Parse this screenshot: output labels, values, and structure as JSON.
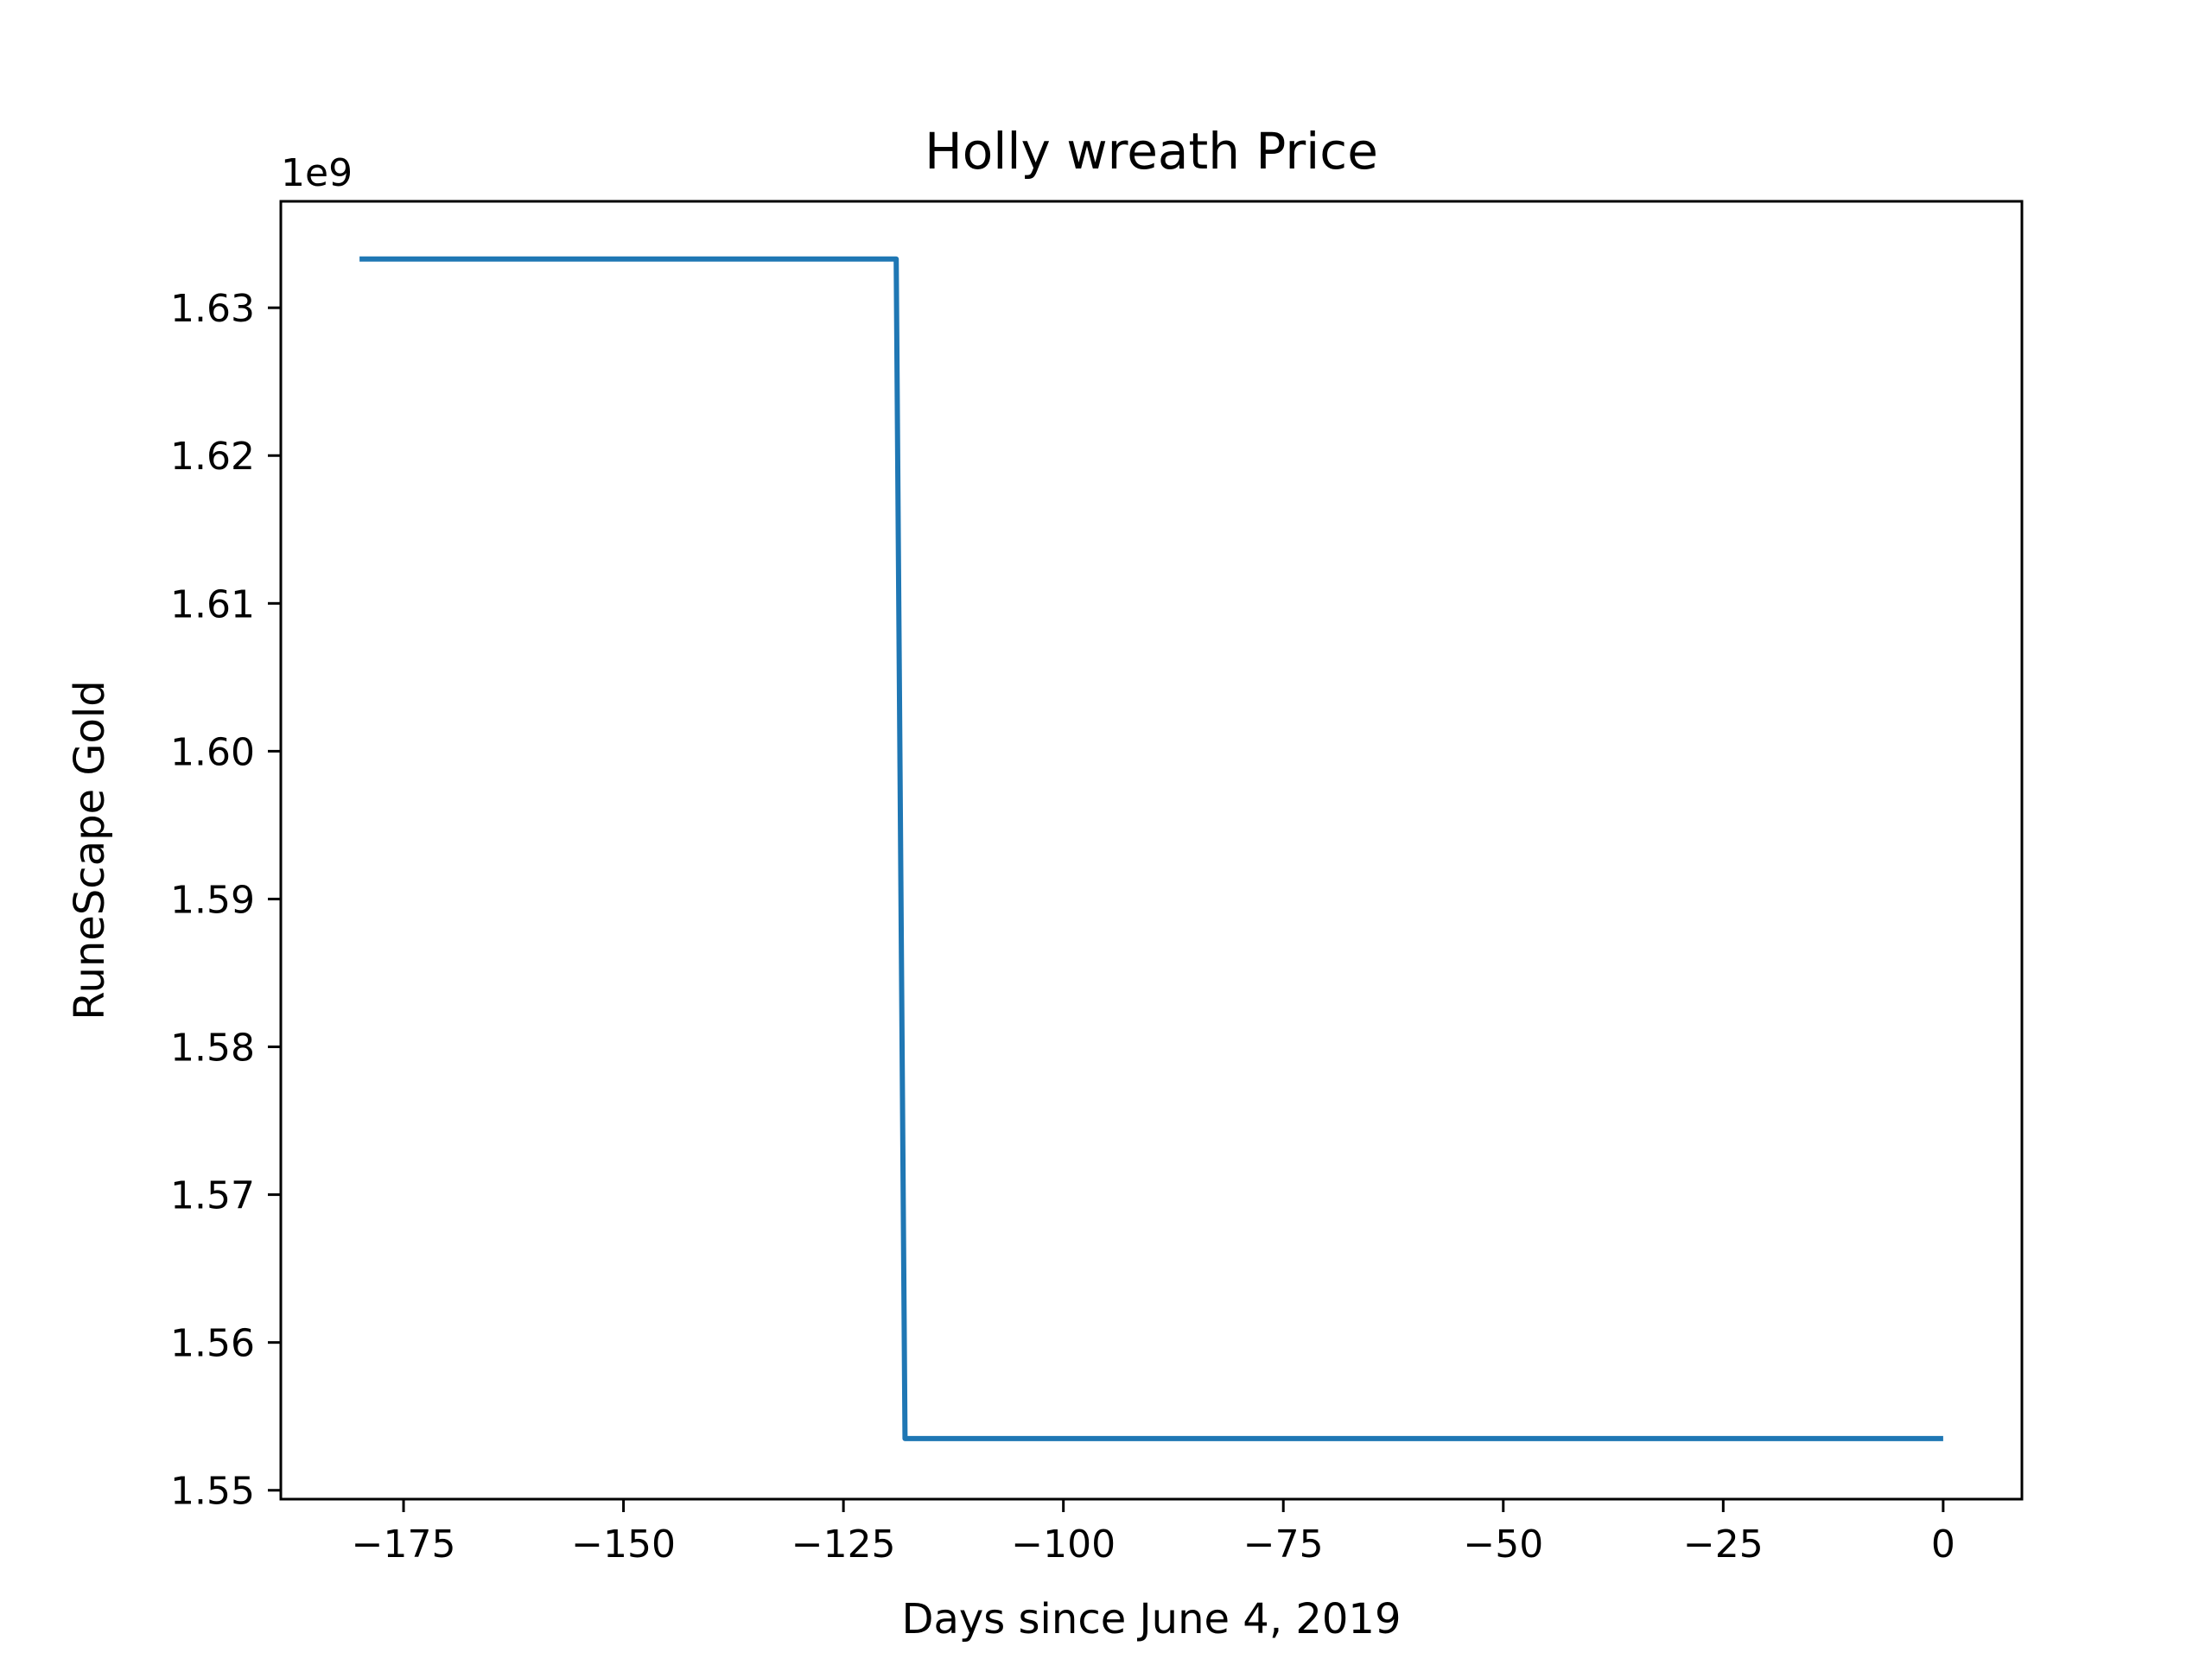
{
  "chart_data": {
    "type": "line",
    "title": "Holly wreath Price",
    "xlabel": "Days since June 4, 2019",
    "ylabel": "RuneScape Gold",
    "y_offset_label": "1e9",
    "xlim": [
      -188.95,
      8.95
    ],
    "ylim": [
      1.5494,
      1.6372
    ],
    "x_ticks": [
      {
        "value": -175,
        "label": "−175"
      },
      {
        "value": -150,
        "label": "−150"
      },
      {
        "value": -125,
        "label": "−125"
      },
      {
        "value": -100,
        "label": "−100"
      },
      {
        "value": -75,
        "label": "−75"
      },
      {
        "value": -50,
        "label": "−50"
      },
      {
        "value": -25,
        "label": "−25"
      },
      {
        "value": 0,
        "label": "0"
      }
    ],
    "y_ticks": [
      {
        "value": 1.55,
        "label": "1.55"
      },
      {
        "value": 1.56,
        "label": "1.56"
      },
      {
        "value": 1.57,
        "label": "1.57"
      },
      {
        "value": 1.58,
        "label": "1.58"
      },
      {
        "value": 1.59,
        "label": "1.59"
      },
      {
        "value": 1.6,
        "label": "1.60"
      },
      {
        "value": 1.61,
        "label": "1.61"
      },
      {
        "value": 1.62,
        "label": "1.62"
      },
      {
        "value": 1.63,
        "label": "1.63"
      }
    ],
    "grid": false,
    "series": [
      {
        "color": "#1f77b4",
        "x": [
          -180,
          -119,
          -118,
          0
        ],
        "y": [
          1.6333,
          1.6333,
          1.5535,
          1.5535
        ]
      }
    ]
  }
}
